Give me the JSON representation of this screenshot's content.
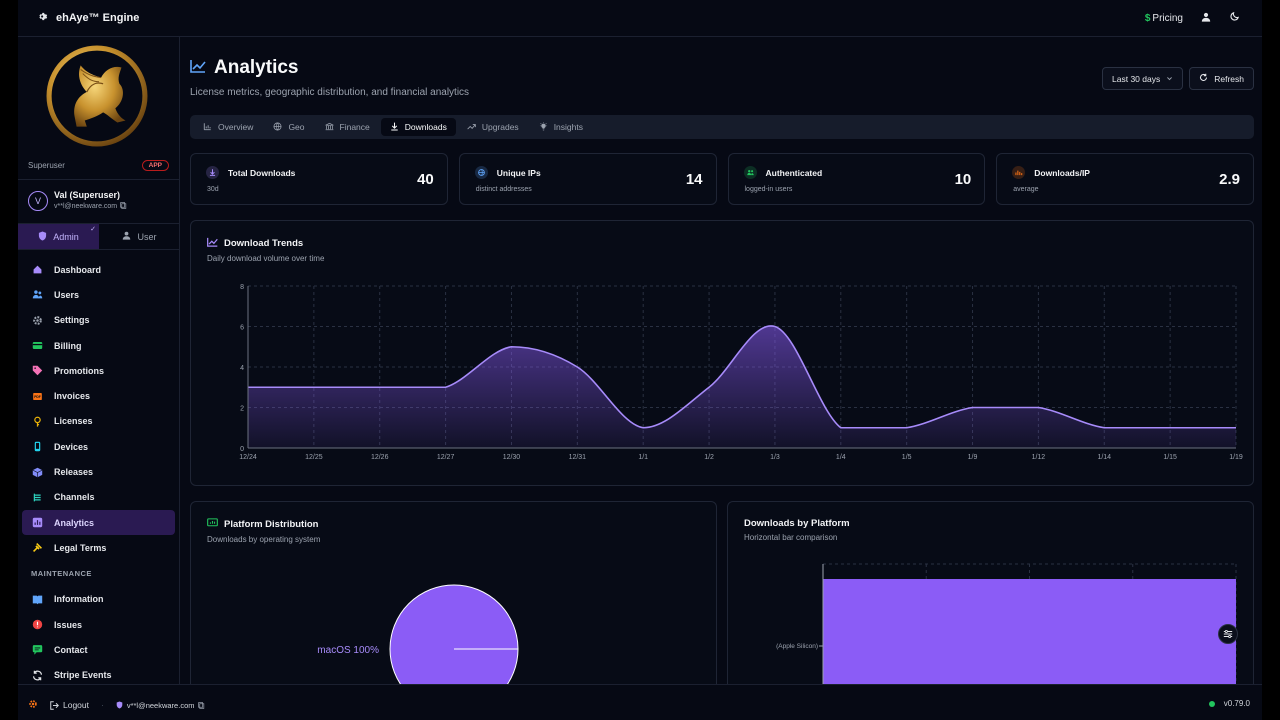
{
  "app": {
    "name": "ehAye™ Engine"
  },
  "topbar": {
    "pricing_label": "Pricing"
  },
  "sidebar": {
    "role": "Superuser",
    "role_badge": "APP",
    "user_name": "Val (Superuser)",
    "user_email": "v**l@neekware.com",
    "mode_admin": "Admin",
    "mode_user": "User",
    "items": [
      {
        "label": "Dashboard",
        "icon": "home-icon",
        "color": "#a78bfa"
      },
      {
        "label": "Users",
        "icon": "users-icon",
        "color": "#60a5fa"
      },
      {
        "label": "Settings",
        "icon": "gear-icon",
        "color": "#9ca3af"
      },
      {
        "label": "Billing",
        "icon": "credit-card-icon",
        "color": "#22c55e"
      },
      {
        "label": "Promotions",
        "icon": "tag-icon",
        "color": "#f472b6"
      },
      {
        "label": "Invoices",
        "icon": "invoice-icon",
        "color": "#f97316"
      },
      {
        "label": "Licenses",
        "icon": "key-icon",
        "color": "#eab308"
      },
      {
        "label": "Devices",
        "icon": "device-icon",
        "color": "#22d3ee"
      },
      {
        "label": "Releases",
        "icon": "package-icon",
        "color": "#818cf8"
      },
      {
        "label": "Channels",
        "icon": "channels-icon",
        "color": "#2dd4bf"
      },
      {
        "label": "Analytics",
        "icon": "analytics-icon",
        "color": "#a78bfa",
        "active": true
      },
      {
        "label": "Legal Terms",
        "icon": "legal-icon",
        "color": "#facc15"
      }
    ],
    "maintenance_label": "MAINTENANCE",
    "maintenance_items": [
      {
        "label": "Information",
        "icon": "book-icon",
        "color": "#60a5fa"
      },
      {
        "label": "Issues",
        "icon": "alert-icon",
        "color": "#ef4444"
      },
      {
        "label": "Contact",
        "icon": "chat-icon",
        "color": "#22c55e"
      },
      {
        "label": "Stripe Events",
        "icon": "sync-icon",
        "color": "#e5e7eb"
      }
    ]
  },
  "main": {
    "title": "Analytics",
    "subtitle": "License metrics, geographic distribution, and financial analytics",
    "range_label": "Last 30 days",
    "refresh_label": "Refresh",
    "tabs": [
      {
        "label": "Overview",
        "icon": "bar-chart-icon"
      },
      {
        "label": "Geo",
        "icon": "globe-icon"
      },
      {
        "label": "Finance",
        "icon": "bank-icon"
      },
      {
        "label": "Downloads",
        "icon": "download-icon",
        "active": true
      },
      {
        "label": "Upgrades",
        "icon": "trend-up-icon"
      },
      {
        "label": "Insights",
        "icon": "lightbulb-icon"
      }
    ],
    "stats": [
      {
        "label": "Total Downloads",
        "sub": "30d",
        "value": "40",
        "icon": "download-icon",
        "color": "#a78bfa"
      },
      {
        "label": "Unique IPs",
        "sub": "distinct addresses",
        "value": "14",
        "icon": "globe-icon",
        "color": "#60a5fa"
      },
      {
        "label": "Authenticated",
        "sub": "logged-in users",
        "value": "10",
        "icon": "users-icon",
        "color": "#22c55e"
      },
      {
        "label": "Downloads/IP",
        "sub": "average",
        "value": "2.9",
        "icon": "bar-chart-icon",
        "color": "#f97316"
      }
    ],
    "trend": {
      "title": "Download Trends",
      "subtitle": "Daily download volume over time"
    },
    "platform": {
      "title": "Platform Distribution",
      "subtitle": "Downloads by operating system"
    },
    "platbar": {
      "title": "Downloads by Platform",
      "subtitle": "Horizontal bar comparison"
    }
  },
  "footer": {
    "logout_label": "Logout",
    "email": "v**l@neekware.com",
    "version": "v0.79.0"
  },
  "chart_data": [
    {
      "type": "area",
      "title": "Download Trends",
      "subtitle": "Daily download volume over time",
      "x": [
        "12/24",
        "12/25",
        "12/26",
        "12/27",
        "12/30",
        "12/31",
        "1/1",
        "1/2",
        "1/3",
        "1/4",
        "1/5",
        "1/9",
        "1/12",
        "1/14",
        "1/15",
        "1/19"
      ],
      "values": [
        3,
        3,
        3,
        3,
        5,
        4,
        1,
        3,
        6,
        1,
        1,
        2,
        2,
        1,
        1,
        1
      ],
      "ylim": [
        0,
        8
      ],
      "yticks": [
        0,
        2,
        4,
        6,
        8
      ],
      "grid": true,
      "color": "#8b5cf6"
    },
    {
      "type": "pie",
      "title": "Platform Distribution",
      "subtitle": "Downloads by operating system",
      "slices": [
        {
          "label": "macOS",
          "value": 100
        }
      ],
      "slice_label": "macOS 100%",
      "color": "#8b5cf6"
    },
    {
      "type": "bar",
      "orientation": "horizontal",
      "title": "Downloads by Platform",
      "subtitle": "Horizontal bar comparison",
      "categories": [
        "(Apple Silicon)"
      ],
      "values": [
        40
      ],
      "color": "#8b5cf6"
    }
  ]
}
